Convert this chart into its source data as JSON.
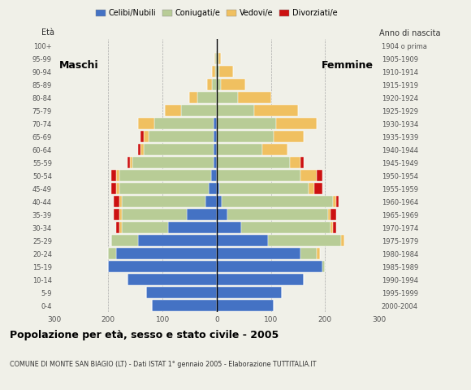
{
  "age_groups": [
    "0-4",
    "5-9",
    "10-14",
    "15-19",
    "20-24",
    "25-29",
    "30-34",
    "35-39",
    "40-44",
    "45-49",
    "50-54",
    "55-59",
    "60-64",
    "65-69",
    "70-74",
    "75-79",
    "80-84",
    "85-89",
    "90-94",
    "95-99",
    "100+"
  ],
  "birth_years": [
    "2000-2004",
    "1995-1999",
    "1990-1994",
    "1985-1989",
    "1980-1984",
    "1975-1979",
    "1970-1974",
    "1965-1969",
    "1960-1964",
    "1955-1959",
    "1950-1954",
    "1945-1949",
    "1940-1944",
    "1935-1939",
    "1930-1934",
    "1925-1929",
    "1920-1924",
    "1915-1919",
    "1910-1914",
    "1905-1909",
    "1904 o prima"
  ],
  "males": {
    "celibe": [
      120,
      130,
      165,
      200,
      185,
      145,
      90,
      55,
      20,
      15,
      10,
      5,
      5,
      5,
      5,
      0,
      0,
      0,
      0,
      0,
      0
    ],
    "coniugato": [
      0,
      0,
      0,
      0,
      15,
      50,
      85,
      120,
      155,
      165,
      170,
      150,
      130,
      120,
      110,
      65,
      35,
      8,
      3,
      2,
      0
    ],
    "vedovo": [
      0,
      0,
      0,
      0,
      0,
      0,
      5,
      5,
      5,
      5,
      5,
      5,
      5,
      10,
      30,
      30,
      15,
      10,
      5,
      2,
      0
    ],
    "divorziato": [
      0,
      0,
      0,
      0,
      0,
      0,
      5,
      10,
      10,
      10,
      10,
      5,
      5,
      5,
      0,
      0,
      0,
      0,
      0,
      0,
      0
    ]
  },
  "females": {
    "nubile": [
      105,
      120,
      160,
      195,
      155,
      95,
      45,
      20,
      10,
      5,
      0,
      0,
      0,
      0,
      0,
      0,
      0,
      0,
      0,
      0,
      0
    ],
    "coniugata": [
      0,
      0,
      0,
      5,
      30,
      135,
      165,
      185,
      205,
      165,
      155,
      135,
      85,
      105,
      110,
      70,
      40,
      8,
      5,
      3,
      0
    ],
    "vedova": [
      0,
      0,
      0,
      0,
      5,
      5,
      5,
      5,
      5,
      10,
      30,
      20,
      45,
      55,
      75,
      80,
      60,
      45,
      25,
      5,
      0
    ],
    "divorziata": [
      0,
      0,
      0,
      0,
      0,
      0,
      5,
      10,
      5,
      15,
      10,
      5,
      0,
      0,
      0,
      0,
      0,
      0,
      0,
      0,
      0
    ]
  },
  "colors": {
    "celibe": "#4472c4",
    "coniugato": "#b8cc96",
    "vedovo": "#f0c060",
    "divorziato": "#cc1111"
  },
  "xlim": 300,
  "title": "Popolazione per età, sesso e stato civile - 2005",
  "subtitle": "COMUNE DI MONTE SAN BIAGIO (LT) - Dati ISTAT 1° gennaio 2005 - Elaborazione TUTTITALIA.IT",
  "legend_labels": [
    "Celibi/Nubili",
    "Coniugati/e",
    "Vedovi/e",
    "Divorziati/e"
  ],
  "ylabel_left": "Età",
  "ylabel_right": "Anno di nascita",
  "label_maschi": "Maschi",
  "label_femmine": "Femmine",
  "background_color": "#f0f0e8",
  "bar_height": 0.82
}
